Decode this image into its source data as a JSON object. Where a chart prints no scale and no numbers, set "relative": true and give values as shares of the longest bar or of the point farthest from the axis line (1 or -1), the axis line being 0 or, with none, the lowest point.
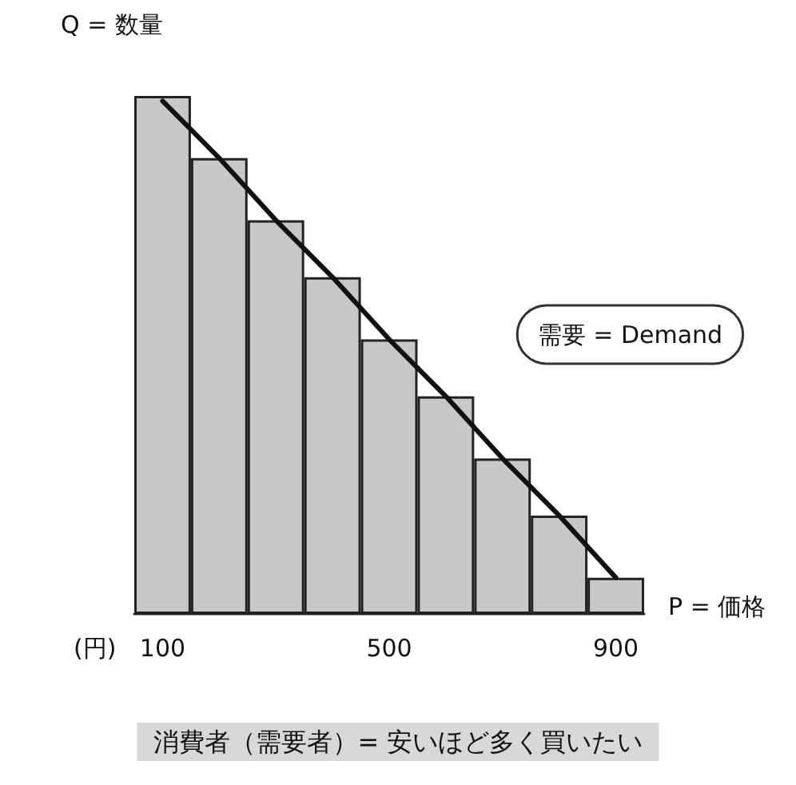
{
  "chart_data": {
    "type": "bar",
    "relative": true,
    "ylabel": "Q = 数量",
    "xlabel": "P = 価格",
    "subtitle": "消費者（需要者）= 安いほど多く買いたい",
    "annotations": [
      "(円)"
    ],
    "categories": [
      "100",
      null,
      null,
      null,
      "500",
      null,
      null,
      null,
      "900"
    ],
    "series": [
      {
        "color": "#c8c8c8",
        "values": [
          1,
          0.88,
          0.76,
          0.65,
          0.53,
          0.42,
          0.3,
          0.19,
          0.07
        ]
      },
      {
        "type": "line",
        "name": "需要 = Demand",
        "color": "#111111",
        "values": [
          0.99,
          0.88,
          0.76,
          0.65,
          0.53,
          0.42,
          0.3,
          0.19,
          0.07
        ]
      }
    ],
    "grid": false,
    "legend": false,
    "marker": "none",
    "line_style": "solid"
  }
}
